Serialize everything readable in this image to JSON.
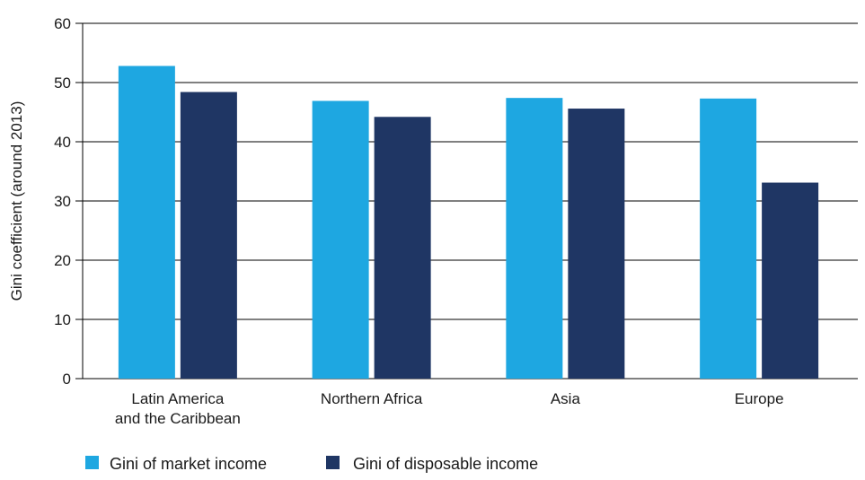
{
  "chart_data": {
    "type": "bar",
    "categories": [
      [
        "Latin America",
        "and the Caribbean"
      ],
      [
        "Northern Africa"
      ],
      [
        "Asia"
      ],
      [
        "Europe"
      ]
    ],
    "series": [
      {
        "name": "Gini of market income",
        "color": "#1ea7e1",
        "values": [
          52.8,
          46.9,
          47.4,
          47.3
        ]
      },
      {
        "name": "Gini of disposable income",
        "color": "#1f3664",
        "values": [
          48.4,
          44.2,
          45.6,
          33.1
        ]
      }
    ],
    "ylabel": "Gini coefficient (around 2013)",
    "ylim": [
      0,
      60
    ],
    "yticks": [
      0,
      10,
      20,
      30,
      40,
      50,
      60
    ],
    "grid": true,
    "legend": "bottom-left"
  }
}
